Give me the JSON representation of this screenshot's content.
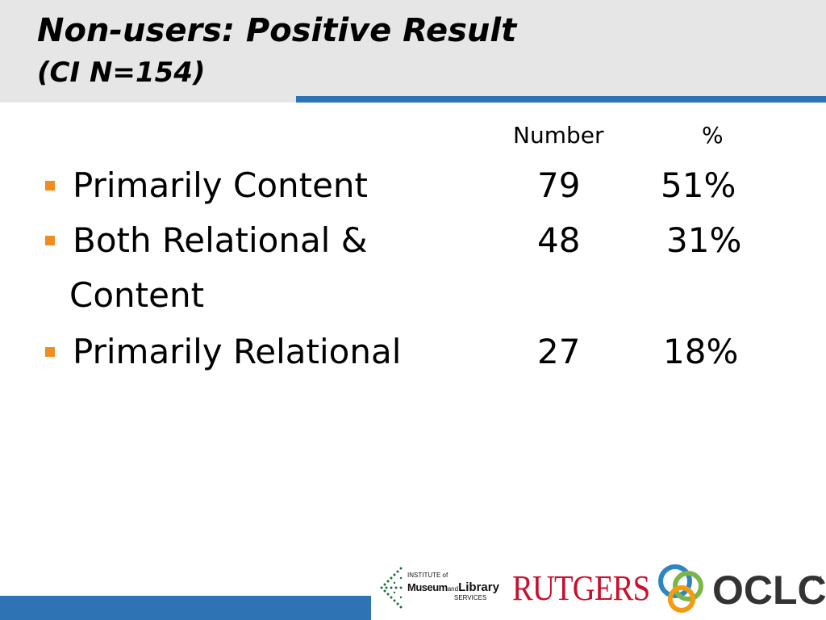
{
  "slide": {
    "title": "Non-users: Positive Result",
    "subtitle": "(CI N=154)"
  },
  "table": {
    "headers": {
      "number": "Number",
      "percent": "%"
    },
    "rows": [
      {
        "label": "Primarily Content",
        "number": "79",
        "percent": "51%"
      },
      {
        "label": "Both Relational &",
        "label_cont": "Content",
        "number": "48",
        "percent": "31%"
      },
      {
        "label": "Primarily Relational",
        "number": "27",
        "percent": "18%"
      }
    ]
  },
  "footer": {
    "logos": {
      "imls": {
        "line1": "INSTITUTE of",
        "line2a": "Museum",
        "line2b": "and",
        "line2c": "Library",
        "line3": "SERVICES"
      },
      "rutgers": "RUTGERS",
      "oclc": "OCLC",
      "tm": "TM"
    }
  },
  "colors": {
    "header_bg": "#e6e6e6",
    "accent_blue": "#2e74b5",
    "bullet_orange": "#f28c1e",
    "rutgers_red": "#c8102e"
  }
}
